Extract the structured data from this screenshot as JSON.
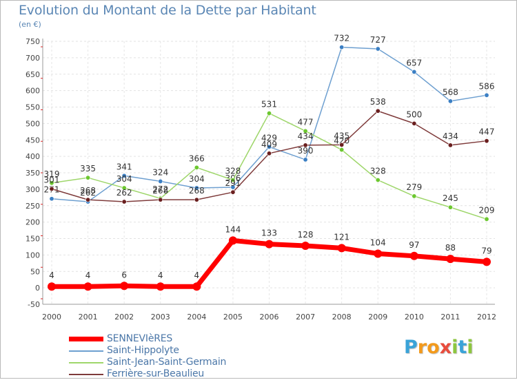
{
  "title": "Evolution du Montant de la Dette par Habitant",
  "unit": "(en €)",
  "brand": {
    "text": "Proxiti",
    "letters": [
      "P",
      "r",
      "o",
      "x",
      "i",
      "t",
      "i"
    ],
    "colors": [
      "#3aa3d8",
      "#f39a1c",
      "#f39a1c",
      "#e84c3d",
      "#8dc63f",
      "#3aa3d8",
      "#8dc63f"
    ]
  },
  "chart_data": {
    "type": "line",
    "title": "Evolution du Montant de la Dette par Habitant",
    "ylabel": "(en €)",
    "xlabel": "",
    "ylim": [
      -50,
      750
    ],
    "yticks": [
      -50,
      0,
      50,
      100,
      150,
      200,
      250,
      300,
      350,
      400,
      450,
      500,
      550,
      600,
      650,
      700,
      750
    ],
    "categories": [
      "2000",
      "2001",
      "2002",
      "2003",
      "2004",
      "2005",
      "2006",
      "2007",
      "2008",
      "2009",
      "2010",
      "2011",
      "2012"
    ],
    "grid": true,
    "legend_position": "bottom-left",
    "series": [
      {
        "name": "Saint-Hippolyte",
        "color": "#6d9fd0",
        "marker": "#3b7fc4",
        "values": [
          271,
          262,
          341,
          324,
          304,
          306,
          429,
          390,
          732,
          727,
          657,
          568,
          586
        ],
        "labels": [
          "271",
          "262",
          "341",
          "324",
          "304",
          "306",
          "429",
          "390",
          "732",
          "727",
          "657",
          "568",
          "586"
        ]
      },
      {
        "name": "Saint-Jean-Saint-Germain",
        "color": "#9ed66a",
        "marker": "#6cc72f",
        "values": [
          319,
          335,
          304,
          272,
          366,
          328,
          531,
          477,
          420,
          328,
          279,
          245,
          209
        ],
        "labels": [
          "319",
          "335",
          "304",
          "272",
          "366",
          "328",
          "531",
          "477",
          "420",
          "328",
          "279",
          "245",
          "209"
        ]
      },
      {
        "name": "Ferrière-sur-Beaulieu",
        "color": "#7e3a3a",
        "marker": "#6a1f1f",
        "values": [
          301,
          268,
          262,
          268,
          268,
          291,
          409,
          434,
          435,
          538,
          500,
          434,
          447
        ],
        "labels": [
          "301",
          "268",
          "262",
          "268",
          "268",
          "291",
          "409",
          "434",
          "435",
          "538",
          "500",
          "434",
          "447"
        ]
      },
      {
        "name": "SENNEVIèRES",
        "color": "#ff0000",
        "marker": "#ff0000",
        "thick": true,
        "values": [
          4,
          4,
          6,
          4,
          4,
          144,
          133,
          128,
          121,
          104,
          97,
          88,
          79
        ],
        "labels": [
          "4",
          "4",
          "6",
          "4",
          "4",
          "144",
          "133",
          "128",
          "121",
          "104",
          "97",
          "88",
          "79"
        ]
      }
    ],
    "legend": [
      {
        "name": "SENNEVIèRES",
        "color": "#ff0000",
        "thick": true
      },
      {
        "name": "Saint-Hippolyte",
        "color": "#6d9fd0"
      },
      {
        "name": "Saint-Jean-Saint-Germain",
        "color": "#9ed66a"
      },
      {
        "name": "Ferrière-sur-Beaulieu",
        "color": "#7e3a3a"
      }
    ]
  }
}
